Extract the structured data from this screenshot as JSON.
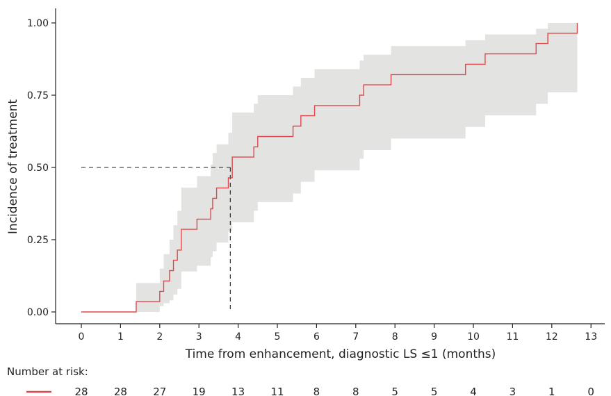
{
  "chart_data": {
    "type": "line",
    "subtype": "step",
    "title": "",
    "xlabel": "Time from enhancement, diagnostic LS ≤1 (months)",
    "ylabel": "Incidence of treatment",
    "xlim": [
      0,
      13
    ],
    "ylim": [
      0,
      1
    ],
    "x_ticks": [
      "0",
      "1",
      "2",
      "3",
      "4",
      "5",
      "6",
      "7",
      "8",
      "9",
      "10",
      "11",
      "12",
      "13"
    ],
    "y_ticks": [
      "0.00",
      "0.25",
      "0.50",
      "0.75",
      "1.00"
    ],
    "grid": false,
    "series": [
      {
        "color": "#e0474c",
        "steps": [
          [
            0,
            0
          ],
          [
            1.4,
            0.036
          ],
          [
            2.0,
            0.071
          ],
          [
            2.1,
            0.107
          ],
          [
            2.25,
            0.143
          ],
          [
            2.35,
            0.179
          ],
          [
            2.45,
            0.214
          ],
          [
            2.55,
            0.286
          ],
          [
            2.95,
            0.321
          ],
          [
            3.3,
            0.357
          ],
          [
            3.35,
            0.393
          ],
          [
            3.45,
            0.429
          ],
          [
            3.75,
            0.464
          ],
          [
            3.85,
            0.536
          ],
          [
            4.4,
            0.571
          ],
          [
            4.5,
            0.607
          ],
          [
            5.4,
            0.643
          ],
          [
            5.6,
            0.679
          ],
          [
            5.95,
            0.714
          ],
          [
            7.1,
            0.75
          ],
          [
            7.2,
            0.786
          ],
          [
            7.9,
            0.821
          ],
          [
            9.8,
            0.857
          ],
          [
            10.3,
            0.893
          ],
          [
            11.6,
            0.929
          ],
          [
            11.9,
            0.964
          ],
          [
            12.65,
            1.0
          ]
        ],
        "ci_band": [
          [
            0,
            0,
            0
          ],
          [
            1.4,
            0,
            0.1
          ],
          [
            2.0,
            0.02,
            0.15
          ],
          [
            2.1,
            0.03,
            0.2
          ],
          [
            2.25,
            0.04,
            0.25
          ],
          [
            2.35,
            0.06,
            0.3
          ],
          [
            2.45,
            0.08,
            0.35
          ],
          [
            2.55,
            0.14,
            0.43
          ],
          [
            2.95,
            0.16,
            0.47
          ],
          [
            3.3,
            0.19,
            0.51
          ],
          [
            3.35,
            0.21,
            0.55
          ],
          [
            3.45,
            0.24,
            0.58
          ],
          [
            3.75,
            0.28,
            0.62
          ],
          [
            3.85,
            0.31,
            0.69
          ],
          [
            4.4,
            0.35,
            0.72
          ],
          [
            4.5,
            0.38,
            0.75
          ],
          [
            5.4,
            0.41,
            0.78
          ],
          [
            5.6,
            0.45,
            0.81
          ],
          [
            5.95,
            0.49,
            0.84
          ],
          [
            7.1,
            0.53,
            0.87
          ],
          [
            7.2,
            0.56,
            0.89
          ],
          [
            7.9,
            0.6,
            0.92
          ],
          [
            9.8,
            0.64,
            0.94
          ],
          [
            10.3,
            0.68,
            0.96
          ],
          [
            11.6,
            0.72,
            0.98
          ],
          [
            11.9,
            0.76,
            1.0
          ],
          [
            12.65,
            0.76,
            1.0
          ]
        ],
        "band_color": "#e3e3e1"
      }
    ],
    "median_guide": {
      "y": 0.5,
      "x": 3.8
    },
    "risk_table": {
      "title": "Number at risk:",
      "times": [
        0,
        1,
        2,
        3,
        4,
        5,
        6,
        7,
        8,
        9,
        10,
        11,
        12,
        13
      ],
      "counts": [
        "28",
        "28",
        "27",
        "19",
        "13",
        "11",
        "8",
        "8",
        "5",
        "5",
        "4",
        "3",
        "1",
        "0"
      ]
    }
  }
}
